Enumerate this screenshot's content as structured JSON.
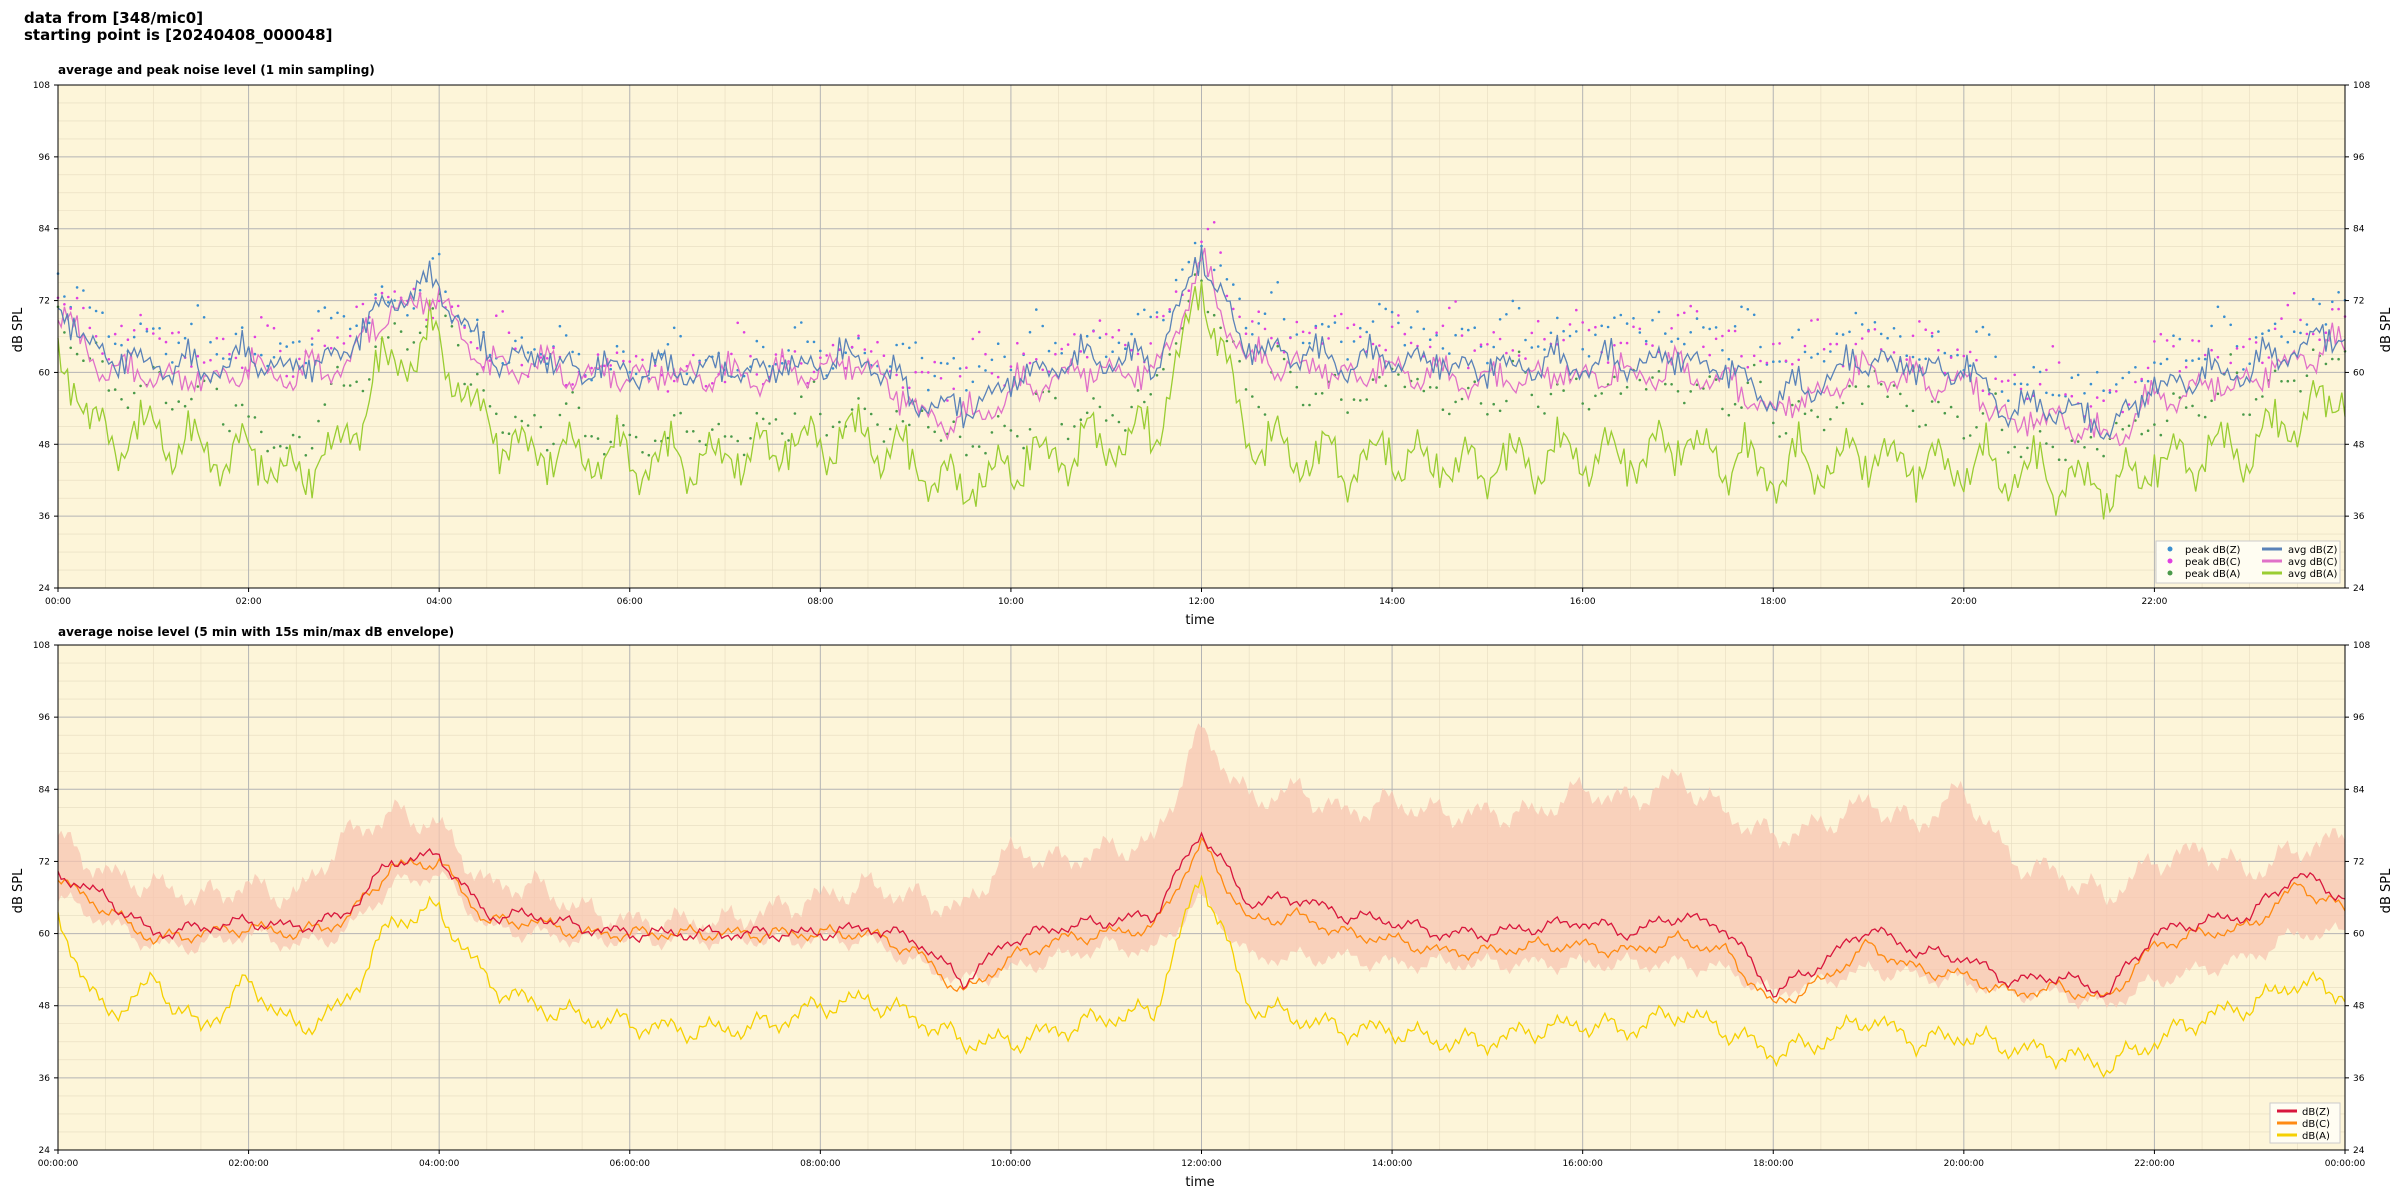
{
  "header": {
    "line1": "data from [348/mic0]",
    "line2": "starting point is [20240408_000048]"
  },
  "colors": {
    "plot_background": "#fdf5d9",
    "peak_z": "#3a8fd0",
    "peak_c": "#e040e0",
    "peak_a": "#4a9a4a",
    "avg_z": "#5a82b8",
    "avg_c": "#e070c8",
    "avg_a": "#9acd32",
    "z": "#d8163c",
    "c": "#ff8a10",
    "a": "#f5d000",
    "envelope": "#f7c4b0"
  },
  "chart_data": [
    {
      "type": "line",
      "title": "average and peak noise level (1 min sampling)",
      "xlabel": "time",
      "ylabel": "dB SPL",
      "ylim": [
        24,
        108
      ],
      "xlim": [
        0,
        24
      ],
      "y_ticks": [
        "24",
        "36",
        "48",
        "60",
        "72",
        "84",
        "96",
        "108"
      ],
      "x_ticks": [
        "00:00",
        "02:00",
        "04:00",
        "06:00",
        "08:00",
        "10:00",
        "12:00",
        "14:00",
        "16:00",
        "18:00",
        "20:00",
        "22:00"
      ],
      "grid": true,
      "legend_position": "bottom-right",
      "x": [
        0,
        0.5,
        1,
        1.5,
        2,
        2.5,
        3,
        3.5,
        4,
        4.5,
        5,
        5.5,
        6,
        6.5,
        7,
        7.5,
        8,
        8.5,
        9,
        9.5,
        10,
        10.5,
        11,
        11.5,
        12,
        12.5,
        13,
        13.5,
        14,
        14.5,
        15,
        15.5,
        16,
        16.5,
        17,
        17.5,
        18,
        18.5,
        19,
        19.5,
        20,
        20.5,
        21,
        21.5,
        22,
        22.5,
        23,
        23.5,
        24
      ],
      "series": [
        {
          "name": "peak dB(Z)",
          "kind": "points",
          "values": [
            74,
            66,
            66,
            64,
            64,
            63,
            68,
            72,
            73,
            64,
            63,
            61,
            61,
            61,
            61,
            62,
            63,
            63,
            60,
            60,
            62,
            64,
            65,
            66,
            82,
            68,
            67,
            66,
            67,
            66,
            65,
            66,
            66,
            66,
            67,
            66,
            63,
            64,
            66,
            64,
            63,
            58,
            58,
            55,
            62,
            64,
            64,
            68,
            70
          ]
        },
        {
          "name": "peak dB(C)",
          "kind": "points",
          "values": [
            73,
            65,
            65,
            63,
            63,
            62,
            67,
            71,
            72,
            63,
            62,
            60,
            60,
            60,
            60,
            61,
            62,
            62,
            59,
            59,
            61,
            63,
            64,
            65,
            81,
            67,
            66,
            65,
            66,
            65,
            64,
            65,
            65,
            65,
            66,
            65,
            62,
            63,
            65,
            63,
            62,
            57,
            57,
            54,
            61,
            63,
            63,
            67,
            69
          ]
        },
        {
          "name": "peak dB(A)",
          "kind": "points",
          "values": [
            68,
            56,
            58,
            54,
            52,
            46,
            56,
            66,
            68,
            54,
            50,
            50,
            49,
            48,
            49,
            51,
            52,
            53,
            50,
            48,
            50,
            52,
            53,
            54,
            76,
            56,
            57,
            56,
            57,
            56,
            55,
            56,
            57,
            56,
            58,
            56,
            52,
            53,
            56,
            54,
            52,
            48,
            48,
            46,
            52,
            55,
            55,
            60,
            62
          ]
        },
        {
          "name": "avg dB(Z)",
          "kind": "line",
          "values": [
            70,
            62,
            61,
            60,
            62,
            60,
            63,
            72,
            74,
            62,
            62,
            60,
            60,
            60,
            60,
            60,
            61,
            62,
            55,
            53,
            58,
            61,
            62,
            61,
            79,
            63,
            63,
            61,
            62,
            61,
            60,
            61,
            61,
            61,
            62,
            60,
            55,
            58,
            62,
            60,
            60,
            53,
            54,
            50,
            57,
            59,
            60,
            64,
            66
          ]
        },
        {
          "name": "avg dB(C)",
          "kind": "line",
          "values": [
            69,
            60,
            59,
            58,
            60,
            59,
            61,
            70,
            72,
            60,
            61,
            59,
            59,
            59,
            59,
            59,
            60,
            61,
            53,
            51,
            56,
            59,
            60,
            59,
            77,
            61,
            61,
            59,
            60,
            59,
            58,
            59,
            59,
            59,
            60,
            58,
            53,
            56,
            60,
            58,
            58,
            51,
            52,
            48,
            55,
            57,
            58,
            62,
            64
          ]
        },
        {
          "name": "avg dB(A)",
          "kind": "line",
          "values": [
            62,
            48,
            50,
            46,
            46,
            42,
            48,
            62,
            64,
            50,
            46,
            46,
            45,
            45,
            45,
            47,
            48,
            49,
            44,
            40,
            44,
            46,
            48,
            49,
            74,
            48,
            46,
            44,
            46,
            44,
            44,
            45,
            46,
            45,
            48,
            45,
            43,
            44,
            46,
            44,
            44,
            43,
            42,
            40,
            44,
            46,
            47,
            52,
            56
          ]
        }
      ]
    },
    {
      "type": "line",
      "title": "average noise level (5 min with 15s min/max dB envelope)",
      "xlabel": "time",
      "ylabel": "dB SPL",
      "ylim": [
        24,
        108
      ],
      "xlim": [
        0,
        24
      ],
      "y_ticks": [
        "24",
        "36",
        "48",
        "60",
        "72",
        "84",
        "96",
        "108"
      ],
      "x_ticks": [
        "00:00:00",
        "02:00:00",
        "04:00:00",
        "06:00:00",
        "08:00:00",
        "10:00:00",
        "12:00:00",
        "14:00:00",
        "16:00:00",
        "18:00:00",
        "20:00:00",
        "22:00:00",
        "00:00:00"
      ],
      "grid": true,
      "legend_position": "bottom-right",
      "x": [
        0,
        0.5,
        1,
        1.5,
        2,
        2.5,
        3,
        3.5,
        4,
        4.5,
        5,
        5.5,
        6,
        6.5,
        7,
        7.5,
        8,
        8.5,
        9,
        9.5,
        10,
        10.5,
        11,
        11.5,
        12,
        12.5,
        13,
        13.5,
        14,
        14.5,
        15,
        15.5,
        16,
        16.5,
        17,
        17.5,
        18,
        18.5,
        19,
        19.5,
        20,
        20.5,
        21,
        21.5,
        22,
        22.5,
        23,
        23.5,
        24
      ],
      "envelope": {
        "min": [
          66,
          62,
          58,
          58,
          60,
          58,
          60,
          68,
          70,
          61,
          60,
          59,
          59,
          59,
          59,
          59,
          59,
          59,
          55,
          52,
          54,
          56,
          58,
          57,
          66,
          56,
          56,
          56,
          55,
          55,
          55,
          55,
          55,
          55,
          55,
          54,
          50,
          52,
          54,
          53,
          52,
          50,
          50,
          48,
          52,
          54,
          56,
          60,
          60
        ],
        "max": [
          76,
          70,
          68,
          66,
          68,
          66,
          76,
          80,
          78,
          68,
          68,
          64,
          62,
          62,
          62,
          64,
          66,
          68,
          66,
          64,
          74,
          72,
          74,
          75,
          94,
          82,
          84,
          80,
          82,
          80,
          80,
          80,
          84,
          82,
          86,
          80,
          76,
          78,
          82,
          78,
          84,
          72,
          70,
          66,
          72,
          74,
          70,
          74,
          76
        ]
      },
      "series": [
        {
          "name": "dB(Z)",
          "values": [
            70,
            66,
            60,
            61,
            62,
            61,
            63,
            72,
            73,
            63,
            63,
            61,
            60,
            60,
            60,
            60,
            60,
            61,
            59,
            52,
            59,
            61,
            62,
            63,
            77,
            65,
            66,
            63,
            62,
            60,
            60,
            61,
            62,
            60,
            63,
            61,
            50,
            55,
            61,
            57,
            56,
            52,
            53,
            50,
            60,
            62,
            63,
            70,
            66
          ]
        },
        {
          "name": "dB(C)",
          "values": [
            69,
            64,
            59,
            60,
            61,
            60,
            62,
            71,
            72,
            62,
            62,
            60,
            60,
            60,
            60,
            60,
            60,
            60,
            57,
            50,
            56,
            59,
            60,
            61,
            75,
            62,
            63,
            60,
            59,
            57,
            57,
            58,
            58,
            57,
            59,
            57,
            48,
            52,
            58,
            54,
            53,
            50,
            51,
            49,
            58,
            60,
            61,
            68,
            64
          ]
        },
        {
          "name": "dB(A)",
          "values": [
            62,
            46,
            52,
            44,
            52,
            44,
            48,
            62,
            64,
            52,
            48,
            46,
            45,
            44,
            44,
            45,
            48,
            49,
            46,
            42,
            42,
            44,
            46,
            47,
            70,
            48,
            46,
            44,
            44,
            42,
            42,
            44,
            45,
            44,
            47,
            44,
            40,
            42,
            46,
            42,
            43,
            41,
            40,
            38,
            42,
            46,
            48,
            52,
            50
          ]
        }
      ]
    }
  ]
}
